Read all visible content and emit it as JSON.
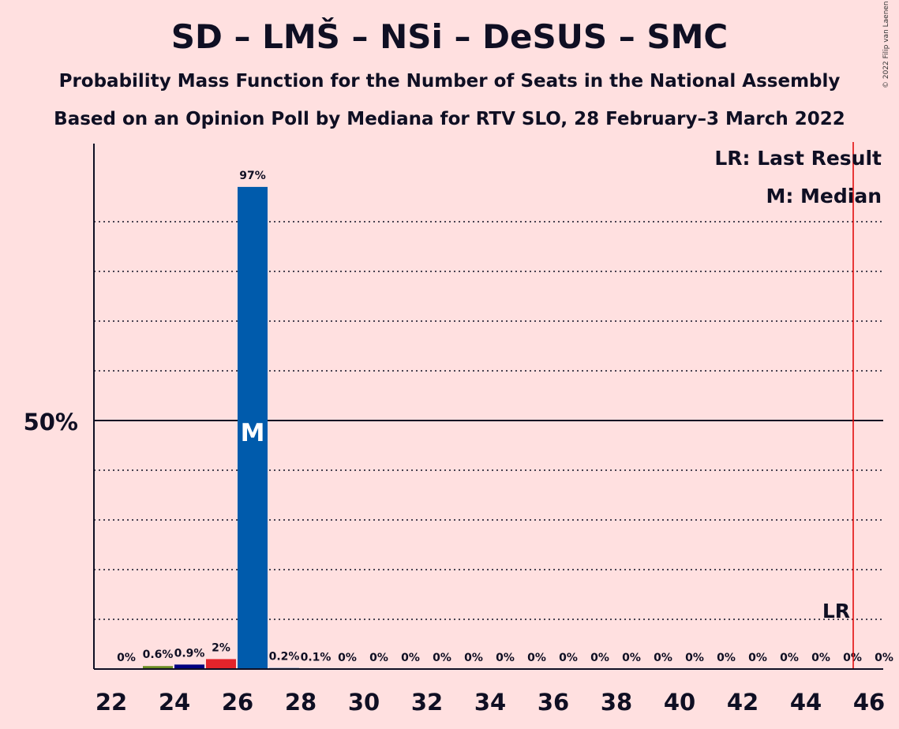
{
  "title": "SD – LMŠ – NSi – DeSUS – SMC",
  "subtitle1": "Probability Mass Function for the Number of Seats in the National Assembly",
  "subtitle2": "Based on an Opinion Poll by Mediana for RTV SLO, 28 February–3 March 2022",
  "copyright": "© 2022 Filip van Laenen",
  "colors": {
    "background": "#FFE0E0",
    "axis": "#0f0f23",
    "last_result_line": "#E00000",
    "median_bar": "#005BAC"
  },
  "chart_data": {
    "type": "bar",
    "x": [
      22,
      23,
      24,
      25,
      26,
      27,
      28,
      29,
      30,
      31,
      32,
      33,
      34,
      35,
      36,
      37,
      38,
      39,
      40,
      41,
      42,
      43,
      44,
      45,
      46
    ],
    "values": [
      0,
      0.6,
      0.9,
      2,
      97,
      0.2,
      0.1,
      0,
      0,
      0,
      0,
      0,
      0,
      0,
      0,
      0,
      0,
      0,
      0,
      0,
      0,
      0,
      0,
      0,
      0
    ],
    "data_labels": [
      "0%",
      "0.6%",
      "0.9%",
      "2%",
      "97%",
      "0.2%",
      "0.1%",
      "0%",
      "0%",
      "0%",
      "0%",
      "0%",
      "0%",
      "0%",
      "0%",
      "0%",
      "0%",
      "0%",
      "0%",
      "0%",
      "0%",
      "0%",
      "0%",
      "0%",
      "0%"
    ],
    "bar_colors": [
      "#005BAC",
      "#6B8E23",
      "#000080",
      "#E3242B",
      "#005BAC",
      "#005BAC",
      "#005BAC",
      "#005BAC",
      "#005BAC",
      "#005BAC",
      "#005BAC",
      "#005BAC",
      "#005BAC",
      "#005BAC",
      "#005BAC",
      "#005BAC",
      "#005BAC",
      "#005BAC",
      "#005BAC",
      "#005BAC",
      "#005BAC",
      "#005BAC",
      "#005BAC",
      "#005BAC",
      "#005BAC"
    ],
    "x_ticks": [
      "22",
      "24",
      "26",
      "28",
      "30",
      "32",
      "34",
      "36",
      "38",
      "40",
      "42",
      "44",
      "46"
    ],
    "ylim": [
      0,
      100
    ],
    "y_major_line": 50,
    "y_major_label": "50%",
    "y_gridlines": [
      10,
      20,
      30,
      40,
      60,
      70,
      80,
      90
    ],
    "median_seat": 26,
    "median_marker": "M",
    "last_result_seat": 45.5,
    "last_result_marker": "LR",
    "legend": [
      "LR: Last Result",
      "M: Median"
    ],
    "legend_placement": "top-right"
  }
}
